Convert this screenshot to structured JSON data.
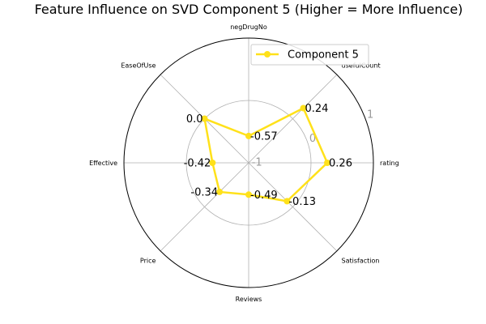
{
  "chart_data": {
    "type": "radar",
    "title": "Feature Influence on SVD Component 5 (Higher = More Influence)",
    "categories": [
      "rating",
      "usefulCount",
      "negDrugNo",
      "EaseOfUse",
      "Effective",
      "Price",
      "Reviews",
      "Satisfaction"
    ],
    "series": [
      {
        "name": "Component 5",
        "values": [
          0.26,
          0.24,
          -0.57,
          0.0,
          -0.42,
          -0.34,
          -0.49,
          -0.13
        ],
        "labels": [
          "0.26",
          "0.24",
          "-0.57",
          "0.0",
          "-0.42",
          "-0.34",
          "-0.49",
          "-0.13"
        ],
        "color": "#ffe11a"
      }
    ],
    "r_ticks": [
      -1,
      0,
      1
    ],
    "r_tick_labels": [
      "-1",
      "0",
      "1"
    ],
    "rlim": [
      -1,
      1
    ],
    "grid": true,
    "legend_position": "top-right"
  }
}
